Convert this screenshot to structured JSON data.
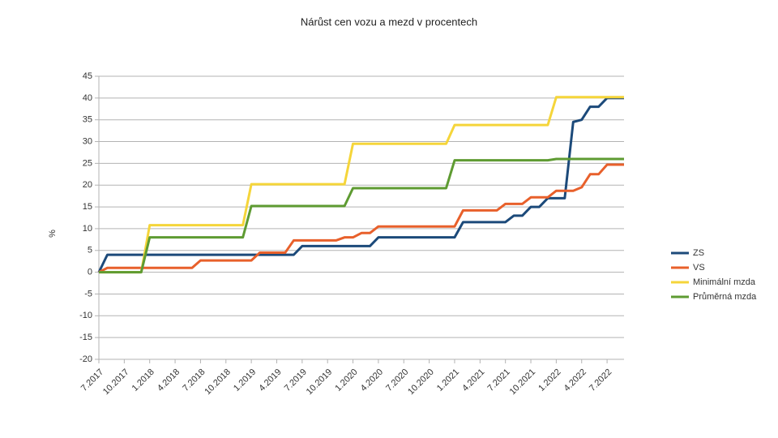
{
  "chart_data": {
    "type": "line",
    "title": "Nárůst cen vozu a mezd v procentech",
    "y_label": "%",
    "categories": [
      "7.2017",
      null,
      null,
      "10.2017",
      null,
      null,
      "1.2018",
      null,
      null,
      "4.2018",
      null,
      null,
      "7.2018",
      null,
      null,
      "10.2018",
      null,
      null,
      "1.2019",
      null,
      null,
      "4.2019",
      null,
      null,
      "7.2019",
      null,
      null,
      "10.2019",
      null,
      null,
      "1.2020",
      null,
      null,
      "4.2020",
      null,
      null,
      "7.2020",
      null,
      null,
      "10.2020",
      null,
      null,
      "1.2021",
      null,
      null,
      "4.2021",
      null,
      null,
      "7.2021",
      null,
      null,
      "10.2021",
      null,
      null,
      "1.2022",
      null,
      null,
      "4.2022",
      null,
      null,
      "7.2022",
      null,
      null
    ],
    "series": [
      {
        "name": "ZS",
        "color": "#1c4a7a",
        "values": [
          0,
          4,
          4,
          4,
          4,
          4,
          4,
          4,
          4,
          4,
          4,
          4,
          4,
          4,
          4,
          4,
          4,
          4,
          4,
          4,
          4,
          4,
          4,
          4,
          6,
          6,
          6,
          6,
          6,
          6,
          6,
          6,
          6,
          8,
          8,
          8,
          8,
          8,
          8,
          8,
          8,
          8,
          8,
          11.5,
          11.5,
          11.5,
          11.5,
          11.5,
          11.5,
          13,
          13,
          15,
          15,
          17,
          17,
          17,
          34.5,
          35,
          38,
          38,
          40,
          40,
          40
        ]
      },
      {
        "name": "VS",
        "color": "#e8602b",
        "values": [
          0,
          1,
          1,
          1,
          1,
          1,
          1,
          1,
          1,
          1,
          1,
          1,
          2.7,
          2.7,
          2.7,
          2.7,
          2.7,
          2.7,
          2.7,
          4.5,
          4.5,
          4.5,
          4.5,
          7.3,
          7.3,
          7.3,
          7.3,
          7.3,
          7.3,
          8,
          8,
          9,
          9,
          10.5,
          10.5,
          10.5,
          10.5,
          10.5,
          10.5,
          10.5,
          10.5,
          10.5,
          10.5,
          14.2,
          14.2,
          14.2,
          14.2,
          14.2,
          15.7,
          15.7,
          15.7,
          17.2,
          17.2,
          17.2,
          18.7,
          18.7,
          18.7,
          19.5,
          22.5,
          22.5,
          24.7,
          24.7,
          24.7
        ]
      },
      {
        "name": "Minimální mzda",
        "color": "#f5d53a",
        "values": [
          0,
          0,
          0,
          0,
          0,
          0,
          10.8,
          10.8,
          10.8,
          10.8,
          10.8,
          10.8,
          10.8,
          10.8,
          10.8,
          10.8,
          10.8,
          10.8,
          20.2,
          20.2,
          20.2,
          20.2,
          20.2,
          20.2,
          20.2,
          20.2,
          20.2,
          20.2,
          20.2,
          20.2,
          29.5,
          29.5,
          29.5,
          29.5,
          29.5,
          29.5,
          29.5,
          29.5,
          29.5,
          29.5,
          29.5,
          29.5,
          33.8,
          33.8,
          33.8,
          33.8,
          33.8,
          33.8,
          33.8,
          33.8,
          33.8,
          33.8,
          33.8,
          33.8,
          40.2,
          40.2,
          40.2,
          40.2,
          40.2,
          40.2,
          40.2,
          40.2,
          40.2
        ]
      },
      {
        "name": "Průměrná mzda",
        "color": "#5e9b32",
        "values": [
          0,
          0,
          0,
          0,
          0,
          0,
          8,
          8,
          8,
          8,
          8,
          8,
          8,
          8,
          8,
          8,
          8,
          8,
          15.2,
          15.2,
          15.2,
          15.2,
          15.2,
          15.2,
          15.2,
          15.2,
          15.2,
          15.2,
          15.2,
          15.2,
          19.3,
          19.3,
          19.3,
          19.3,
          19.3,
          19.3,
          19.3,
          19.3,
          19.3,
          19.3,
          19.3,
          19.3,
          25.7,
          25.7,
          25.7,
          25.7,
          25.7,
          25.7,
          25.7,
          25.7,
          25.7,
          25.7,
          25.7,
          25.7,
          26,
          26,
          26,
          26,
          26,
          26,
          26,
          26,
          26
        ]
      }
    ],
    "ylim": [
      -20,
      45
    ],
    "yticks": [
      -20,
      -15,
      -10,
      -5,
      0,
      5,
      10,
      15,
      20,
      25,
      30,
      35,
      40,
      45
    ],
    "grid": true,
    "legend": "right"
  }
}
